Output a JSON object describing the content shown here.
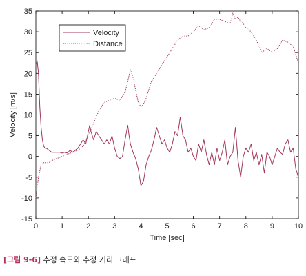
{
  "chart_data": {
    "type": "line",
    "xlabel": "Time [sec]",
    "ylabel": "Velocity [m/s]",
    "xlim": [
      0,
      10
    ],
    "ylim": [
      -15,
      35
    ],
    "xticks": [
      0,
      1,
      2,
      3,
      4,
      5,
      6,
      7,
      8,
      9,
      10
    ],
    "yticks": [
      -15,
      -10,
      -5,
      0,
      5,
      10,
      15,
      20,
      25,
      30,
      35
    ],
    "grid": false,
    "legend_position": "upper-left",
    "series": [
      {
        "name": "Velocity",
        "style": "solid",
        "color": "#a0375a",
        "x": [
          0,
          0.05,
          0.1,
          0.15,
          0.2,
          0.25,
          0.3,
          0.35,
          0.4,
          0.5,
          0.6,
          0.7,
          0.8,
          0.9,
          1.0,
          1.1,
          1.2,
          1.3,
          1.4,
          1.5,
          1.6,
          1.7,
          1.8,
          1.9,
          2.0,
          2.05,
          2.1,
          2.2,
          2.3,
          2.4,
          2.5,
          2.6,
          2.7,
          2.8,
          2.9,
          3.0,
          3.1,
          3.2,
          3.3,
          3.4,
          3.5,
          3.55,
          3.6,
          3.7,
          3.8,
          3.9,
          4.0,
          4.1,
          4.2,
          4.3,
          4.4,
          4.5,
          4.6,
          4.7,
          4.8,
          4.9,
          5.0,
          5.1,
          5.2,
          5.3,
          5.4,
          5.5,
          5.6,
          5.7,
          5.8,
          5.9,
          6.0,
          6.1,
          6.2,
          6.3,
          6.4,
          6.5,
          6.6,
          6.7,
          6.8,
          6.9,
          7.0,
          7.1,
          7.2,
          7.3,
          7.4,
          7.5,
          7.6,
          7.7,
          7.8,
          7.9,
          8.0,
          8.1,
          8.2,
          8.3,
          8.4,
          8.5,
          8.6,
          8.7,
          8.8,
          8.9,
          9.0,
          9.1,
          9.2,
          9.3,
          9.4,
          9.5,
          9.6,
          9.7,
          9.8,
          9.9,
          10.0
        ],
        "y": [
          22,
          23,
          20,
          12,
          7,
          4,
          2.5,
          2,
          2,
          1.5,
          1,
          1,
          1,
          1,
          0.8,
          1,
          0.8,
          1.5,
          1,
          1.5,
          2,
          3,
          4,
          3,
          6,
          7.5,
          6,
          4,
          6,
          5,
          4,
          3,
          4,
          3,
          5,
          2,
          0,
          -0.5,
          0,
          4,
          7.5,
          5,
          3,
          1,
          -0.5,
          -3,
          -7,
          -6,
          -2,
          0,
          1.5,
          4,
          7,
          5,
          3,
          4,
          2,
          1,
          3,
          6,
          5,
          9.5,
          5,
          4,
          1,
          2,
          0,
          -1,
          3,
          1,
          4,
          0.5,
          -2,
          1,
          -2,
          2,
          -1,
          1,
          4,
          -2,
          0,
          1,
          7,
          -1,
          -5,
          0,
          2,
          1,
          3,
          -1,
          1,
          -2,
          0.5,
          -4,
          1,
          0,
          -2,
          0,
          2,
          1,
          0.5,
          3,
          4,
          1,
          2,
          -3,
          -5
        ]
      },
      {
        "name": "Distance",
        "style": "dotted",
        "color": "#a0375a",
        "x": [
          0,
          0.1,
          0.2,
          0.3,
          0.4,
          0.5,
          0.6,
          0.8,
          1.0,
          1.2,
          1.4,
          1.6,
          1.8,
          2.0,
          2.2,
          2.4,
          2.6,
          2.8,
          3.0,
          3.2,
          3.4,
          3.5,
          3.6,
          3.7,
          3.8,
          3.9,
          4.0,
          4.1,
          4.2,
          4.3,
          4.4,
          4.6,
          4.8,
          5.0,
          5.2,
          5.4,
          5.6,
          5.8,
          6.0,
          6.2,
          6.4,
          6.6,
          6.8,
          7.0,
          7.2,
          7.4,
          7.5,
          7.6,
          7.7,
          7.8,
          7.9,
          8.0,
          8.2,
          8.4,
          8.6,
          8.8,
          9.0,
          9.2,
          9.4,
          9.6,
          9.8,
          10.0
        ],
        "y": [
          -10,
          -5,
          -2,
          -1.5,
          -1.5,
          -1.5,
          -1,
          -0.5,
          0,
          0.5,
          1,
          1.5,
          2.5,
          5,
          8,
          11,
          13,
          13.5,
          14,
          13.5,
          15.5,
          18,
          21,
          19,
          16,
          13,
          12,
          12.5,
          14,
          16,
          18,
          20,
          22,
          24,
          26,
          28,
          29,
          29,
          30,
          31.5,
          30.5,
          31,
          33,
          33,
          32.5,
          32,
          34.5,
          33,
          33.5,
          32.5,
          32,
          31,
          30,
          28,
          25,
          26,
          25,
          26,
          28,
          27.5,
          26.5,
          22.5
        ]
      }
    ]
  },
  "caption": {
    "tag": "[그림 9-6]",
    "text": " 추정 속도와 추정 거리 그래프"
  }
}
